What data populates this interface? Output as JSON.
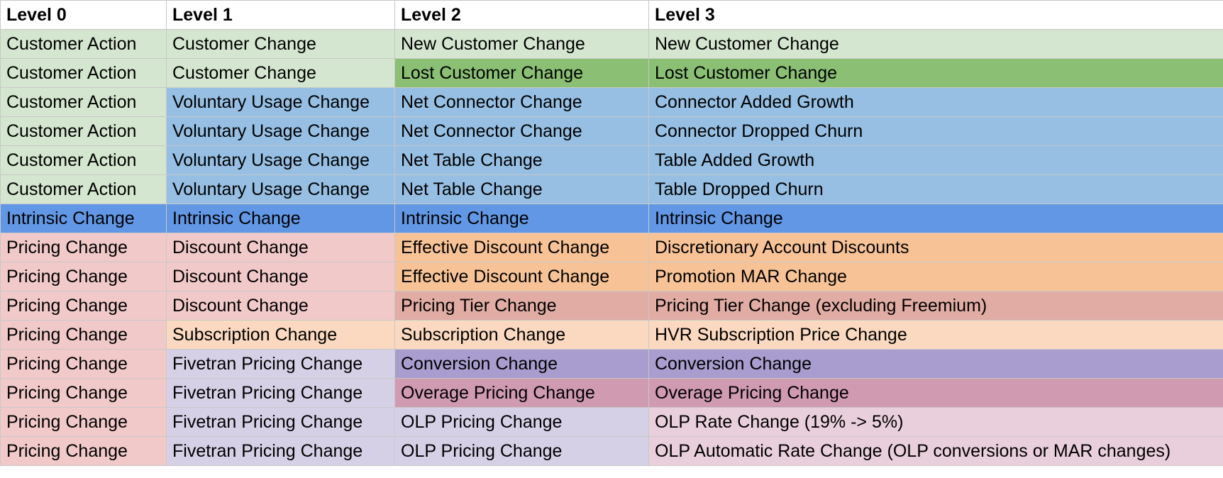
{
  "palette": {
    "light_green": "#d4e6cf",
    "green": "#8abf74",
    "light_blue": "#96bfe3",
    "blue": "#6197e5",
    "light_red": "#f1c9c9",
    "light_orange": "#fad9c0",
    "orange": "#f7c396",
    "dusty_red": "#e1aca4",
    "light_purple": "#d6d0e6",
    "purple": "#a89dce",
    "mauve": "#d09ab1",
    "light_pink": "#e9cfdb",
    "header": "#ffffff"
  },
  "table": {
    "headers": [
      "Level 0",
      "Level 1",
      "Level 2",
      "Level 3"
    ],
    "rows": [
      {
        "cells": [
          "Customer Action",
          "Customer Change",
          "New Customer Change",
          "New Customer Change"
        ],
        "colors": [
          "#d4e6cf",
          "#d4e6cf",
          "#d4e6cf",
          "#d4e6cf"
        ]
      },
      {
        "cells": [
          "Customer Action",
          "Customer Change",
          "Lost Customer Change",
          "Lost Customer Change"
        ],
        "colors": [
          "#d4e6cf",
          "#d4e6cf",
          "#8abf74",
          "#8abf74"
        ]
      },
      {
        "cells": [
          "Customer Action",
          "Voluntary Usage Change",
          "Net Connector Change",
          "Connector Added Growth"
        ],
        "colors": [
          "#d4e6cf",
          "#96bfe3",
          "#96bfe3",
          "#96bfe3"
        ]
      },
      {
        "cells": [
          "Customer Action",
          "Voluntary Usage Change",
          "Net Connector Change",
          "Connector Dropped Churn"
        ],
        "colors": [
          "#d4e6cf",
          "#96bfe3",
          "#96bfe3",
          "#96bfe3"
        ]
      },
      {
        "cells": [
          "Customer Action",
          "Voluntary Usage Change",
          "Net Table Change",
          "Table Added Growth"
        ],
        "colors": [
          "#d4e6cf",
          "#96bfe3",
          "#96bfe3",
          "#96bfe3"
        ]
      },
      {
        "cells": [
          "Customer Action",
          "Voluntary Usage Change",
          "Net Table Change",
          "Table Dropped Churn"
        ],
        "colors": [
          "#d4e6cf",
          "#96bfe3",
          "#96bfe3",
          "#96bfe3"
        ]
      },
      {
        "cells": [
          "Intrinsic Change",
          "Intrinsic Change",
          "Intrinsic Change",
          "Intrinsic Change"
        ],
        "colors": [
          "#6197e5",
          "#6197e5",
          "#6197e5",
          "#6197e5"
        ]
      },
      {
        "cells": [
          "Pricing Change",
          "Discount Change",
          "Effective Discount Change",
          "Discretionary Account Discounts"
        ],
        "colors": [
          "#f1c9c9",
          "#f1c9c9",
          "#f7c396",
          "#f7c396"
        ]
      },
      {
        "cells": [
          "Pricing Change",
          "Discount Change",
          "Effective Discount Change",
          "Promotion MAR Change"
        ],
        "colors": [
          "#f1c9c9",
          "#f1c9c9",
          "#f7c396",
          "#f7c396"
        ]
      },
      {
        "cells": [
          "Pricing Change",
          "Discount Change",
          "Pricing Tier Change",
          "Pricing Tier Change (excluding Freemium)"
        ],
        "colors": [
          "#f1c9c9",
          "#f1c9c9",
          "#e1aca4",
          "#e1aca4"
        ]
      },
      {
        "cells": [
          "Pricing Change",
          "Subscription Change",
          "Subscription Change",
          "HVR Subscription Price Change"
        ],
        "colors": [
          "#f1c9c9",
          "#fad9c0",
          "#fad9c0",
          "#fad9c0"
        ]
      },
      {
        "cells": [
          "Pricing Change",
          "Fivetran Pricing Change",
          "Conversion Change",
          "Conversion Change"
        ],
        "colors": [
          "#f1c9c9",
          "#d6d0e6",
          "#a89dce",
          "#a89dce"
        ]
      },
      {
        "cells": [
          "Pricing Change",
          "Fivetran Pricing Change",
          "Overage Pricing Change",
          "Overage Pricing Change"
        ],
        "colors": [
          "#f1c9c9",
          "#d6d0e6",
          "#d09ab1",
          "#d09ab1"
        ]
      },
      {
        "cells": [
          "Pricing Change",
          "Fivetran Pricing Change",
          "OLP Pricing Change",
          "OLP Rate Change (19% -> 5%)"
        ],
        "colors": [
          "#f1c9c9",
          "#d6d0e6",
          "#d6d0e6",
          "#e9cfdb"
        ]
      },
      {
        "cells": [
          "Pricing Change",
          "Fivetran Pricing Change",
          "OLP Pricing Change",
          "OLP Automatic Rate Change (OLP conversions or MAR changes)"
        ],
        "colors": [
          "#f1c9c9",
          "#d6d0e6",
          "#d6d0e6",
          "#e9cfdb"
        ]
      }
    ]
  }
}
